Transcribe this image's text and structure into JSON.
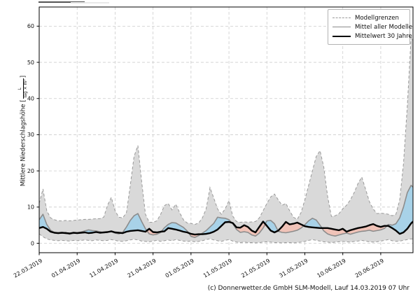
{
  "legend": {
    "items": [
      {
        "label": "Modellgrenzen",
        "style": "dashed-gray"
      },
      {
        "label": "Mittel aller Modelle",
        "style": "solid-gray"
      },
      {
        "label": "Mittelwert 30 Jahre",
        "style": "solid-black"
      }
    ]
  },
  "ylabel": {
    "prefix": "Mittlere Niederschlagshöhe [",
    "frac_num": "L",
    "frac_den": "Tag × m²",
    "suffix": "]"
  },
  "footer": {
    "credit": "(c) Donnerwetter.de GmbH SLM-Modell, Lauf 14.03.2019 07 Uhr"
  },
  "chart_data": {
    "type": "line",
    "title": "",
    "xlabel": "",
    "ylabel": "Mittlere Niederschlagshöhe [L/(Tag × m²)]",
    "grid": true,
    "legend_position": "upper right",
    "x_unit": "days since 22.03.2019 (daily values)",
    "x_tick_labels": [
      "22.03.2019",
      "01.04.2019",
      "11.04.2019",
      "21.04.2019",
      "01.05.2019",
      "11.05.2019",
      "21.05.2019",
      "31.05.2019",
      "10.06.2019",
      "20.06.2019"
    ],
    "x_tick_days": [
      0,
      10,
      20,
      30,
      40,
      50,
      60,
      70,
      80,
      90
    ],
    "y_ticks": [
      0,
      10,
      20,
      30,
      40,
      50,
      60
    ],
    "xlim": [
      0,
      98.5
    ],
    "ylim": [
      -2.6,
      65.3
    ],
    "colors": {
      "band_fill": "#d9d9d9",
      "band_edge": "#999999",
      "fill_above_mean": "#a8d2e8",
      "fill_below_mean": "#f0c3b8",
      "model_mean_line": "#8c8c8c",
      "mean_30yr_line": "#000000",
      "grid": "#cccccc",
      "spine": "#000000"
    },
    "series": [
      {
        "name": "Modellgrenzen (obere Grenze)",
        "role": "upper_bound",
        "values": [
          11,
          15,
          9,
          7,
          6.5,
          6.2,
          6.2,
          6.3,
          6.2,
          6.3,
          6.4,
          6.5,
          6.6,
          6.6,
          6.7,
          6.8,
          6.8,
          7.2,
          10.5,
          12.7,
          9,
          7.2,
          7,
          8.5,
          16,
          24,
          27,
          17,
          8,
          5.8,
          5.8,
          6.2,
          8,
          10.4,
          11,
          9.2,
          10.8,
          8.5,
          6.5,
          5.6,
          5.5,
          5.2,
          5.6,
          7,
          9.5,
          15.4,
          12.5,
          9.5,
          8,
          9.5,
          11.8,
          7.5,
          6,
          5.8,
          5.9,
          5.8,
          5.9,
          6,
          7,
          9,
          11,
          12.8,
          13.6,
          12,
          10.5,
          11,
          9,
          7.2,
          6.6,
          8.5,
          12,
          16,
          20,
          24,
          25.6,
          21,
          13,
          7.4,
          7.6,
          8.2,
          9.5,
          10.5,
          12,
          14,
          16.5,
          18.3,
          15,
          11.5,
          9.5,
          8.2,
          8.3,
          8.2,
          8,
          7.6,
          8,
          12,
          22,
          38,
          57,
          55
        ]
      },
      {
        "name": "Modellgrenzen (untere Grenze)",
        "role": "lower_bound",
        "values": [
          2.6,
          1.8,
          1.2,
          0.9,
          0.8,
          0.7,
          0.8,
          0.7,
          0.6,
          0.8,
          0.7,
          0.8,
          0.9,
          0.8,
          0.7,
          0.9,
          0.8,
          0.7,
          0.8,
          1.0,
          0.8,
          0.6,
          0.5,
          0.7,
          0.9,
          1.1,
          0.9,
          0.6,
          0.5,
          0.4,
          0.6,
          0.8,
          0.5,
          0.7,
          0.9,
          0.7,
          1.0,
          0.8,
          0.6,
          0.5,
          0.6,
          0.4,
          0.5,
          0.7,
          1.0,
          1.2,
          0.9,
          0.7,
          0.5,
          0.8,
          1.0,
          0.6,
          0.3,
          0.2,
          0.3,
          0.2,
          0.2,
          0.1,
          0.2,
          0.3,
          0.4,
          0.3,
          0.2,
          0.2,
          0.1,
          0.2,
          0.2,
          0.1,
          0.2,
          0.3,
          0.5,
          0.8,
          1.0,
          0.8,
          0.6,
          0.4,
          0.3,
          0.2,
          0.3,
          0.4,
          0.5,
          0.4,
          0.3,
          0.5,
          0.6,
          0.8,
          0.6,
          0.4,
          0.3,
          0.4,
          0.6,
          0.8,
          1.0,
          0.7,
          0.5,
          0.6,
          0.8,
          1.0,
          1.2,
          1.0
        ]
      },
      {
        "name": "Mittel aller Modelle",
        "role": "model_mean",
        "values": [
          6.5,
          8.0,
          5.2,
          3.6,
          3.0,
          2.7,
          2.8,
          3.0,
          2.5,
          2.7,
          2.9,
          3.1,
          3.4,
          3.7,
          3.5,
          3.4,
          3.2,
          2.9,
          3.0,
          3.2,
          2.8,
          2.6,
          3.0,
          4.5,
          6.3,
          7.6,
          8.2,
          6.0,
          4.0,
          2.6,
          2.3,
          2.5,
          3.0,
          4.3,
          5.2,
          5.7,
          5.6,
          5.0,
          4.4,
          3.4,
          1.9,
          1.6,
          2.1,
          2.8,
          3.5,
          4.5,
          5.5,
          7.2,
          7.0,
          6.9,
          6.5,
          5.4,
          3.8,
          3.0,
          3.2,
          3.0,
          2.3,
          2.0,
          2.8,
          4.2,
          6.2,
          6.3,
          5.4,
          3.3,
          3.0,
          2.9,
          3.1,
          3.3,
          3.6,
          4.2,
          5.1,
          6.2,
          6.9,
          6.4,
          5.0,
          3.4,
          2.6,
          2.2,
          2.0,
          2.3,
          2.6,
          2.8,
          2.5,
          2.8,
          3.1,
          3.3,
          3.4,
          3.6,
          3.3,
          3.5,
          3.7,
          4.1,
          5.2,
          5.0,
          5.4,
          7.0,
          10.0,
          14.0,
          16.0,
          15.0
        ]
      },
      {
        "name": "Mittelwert 30 Jahre",
        "role": "mean_30yr",
        "values": [
          4.2,
          4.5,
          4.0,
          3.2,
          2.9,
          2.8,
          2.9,
          2.8,
          2.7,
          2.9,
          2.8,
          2.9,
          3.0,
          2.8,
          2.9,
          3.1,
          2.9,
          3.0,
          3.1,
          3.3,
          3.0,
          2.9,
          2.8,
          3.2,
          3.4,
          3.5,
          3.6,
          3.4,
          3.2,
          4.0,
          3.1,
          3.0,
          3.2,
          3.3,
          4.2,
          4.0,
          3.8,
          3.5,
          3.2,
          3.0,
          2.6,
          2.4,
          2.5,
          2.5,
          2.6,
          2.8,
          3.2,
          3.8,
          4.8,
          5.8,
          5.9,
          5.6,
          4.4,
          4.3,
          5.0,
          4.5,
          3.5,
          3.0,
          4.5,
          6.0,
          4.8,
          3.5,
          3.0,
          3.5,
          4.6,
          5.9,
          5.2,
          5.4,
          5.7,
          5.2,
          4.7,
          4.5,
          4.4,
          4.3,
          4.2,
          4.2,
          4.2,
          4.0,
          3.8,
          3.6,
          4.0,
          3.2,
          3.6,
          3.9,
          4.2,
          4.4,
          4.6,
          5.0,
          5.3,
          4.8,
          4.5,
          4.8,
          4.8,
          4.2,
          3.5,
          2.6,
          3.0,
          4.0,
          5.5,
          6.5
        ]
      }
    ]
  }
}
